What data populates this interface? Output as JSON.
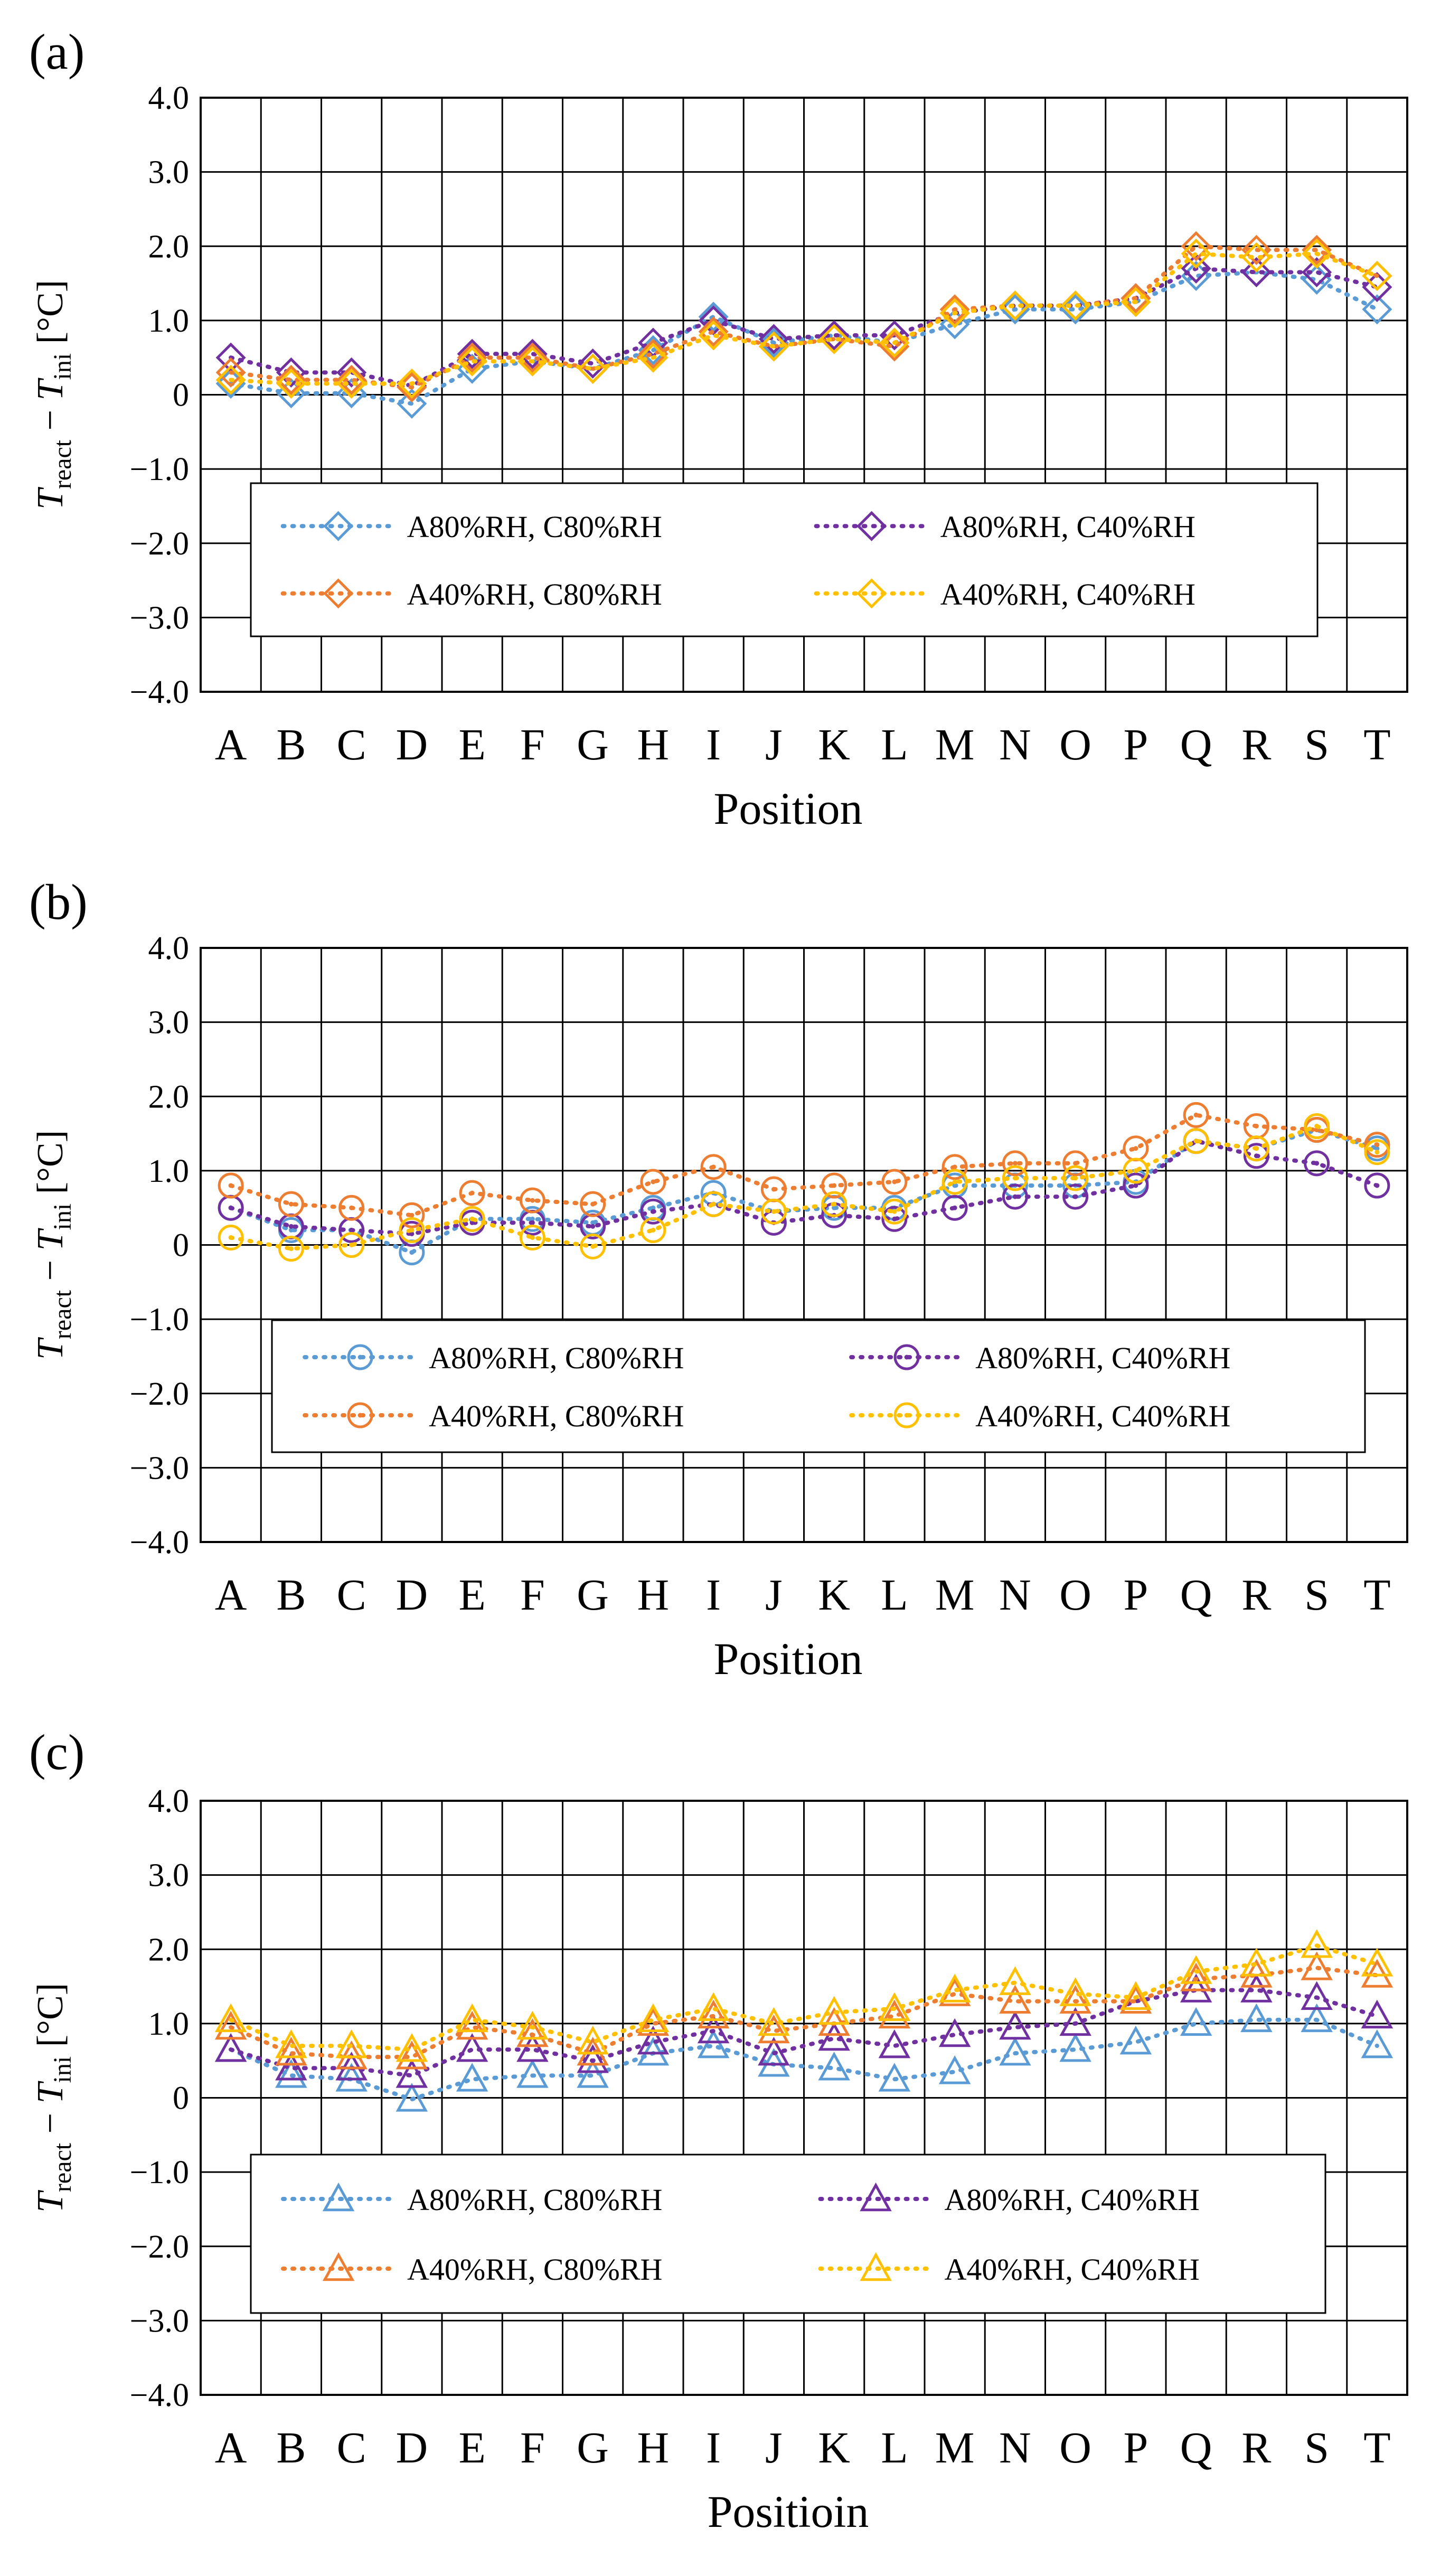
{
  "figure": {
    "panel_labels": [
      "(a)",
      "(b)",
      "(c)"
    ]
  },
  "colors": {
    "A80%RH, C80%RH": "#5B9BD5",
    "A80%RH, C40%RH": "#7030A0",
    "A40%RH, C80%RH": "#ED7D31",
    "A40%RH, C40%RH": "#FFC000"
  },
  "chart_data": [
    {
      "type": "line",
      "panel": "(a)",
      "marker": "diamond",
      "categories": [
        "A",
        "B",
        "C",
        "D",
        "E",
        "F",
        "G",
        "H",
        "I",
        "J",
        "K",
        "L",
        "M",
        "N",
        "O",
        "P",
        "Q",
        "R",
        "S",
        "T"
      ],
      "xlabel": "Position",
      "ylabel_main": "T",
      "ylabel_sub1": "react",
      "ylabel_dash": " − ",
      "ylabel_main2": "T",
      "ylabel_sub2": "ini",
      "ylabel_unit": " [°C]",
      "yticks": [
        "4.0",
        "3.0",
        "2.0",
        "1.0",
        "0",
        "−1.0",
        "−2.0",
        "−3.0",
        "−4.0"
      ],
      "ylim": [
        -4,
        4
      ],
      "grid": true,
      "legend_position": "lower-center",
      "series": [
        {
          "name": "A80%RH, C80%RH",
          "values": [
            0.15,
            0.02,
            0.02,
            -0.12,
            0.35,
            0.45,
            0.35,
            0.6,
            1.05,
            0.7,
            0.8,
            0.7,
            0.95,
            1.15,
            1.15,
            1.25,
            1.6,
            1.65,
            1.55,
            1.15
          ]
        },
        {
          "name": "A80%RH, C40%RH",
          "values": [
            0.5,
            0.3,
            0.3,
            0.12,
            0.55,
            0.55,
            0.42,
            0.7,
            1.0,
            0.75,
            0.8,
            0.8,
            1.1,
            1.2,
            1.2,
            1.3,
            1.7,
            1.65,
            1.65,
            1.45
          ]
        },
        {
          "name": "A40%RH, C80%RH",
          "values": [
            0.3,
            0.2,
            0.2,
            0.1,
            0.5,
            0.5,
            0.35,
            0.55,
            0.85,
            0.65,
            0.75,
            0.65,
            1.15,
            1.2,
            1.2,
            1.3,
            2.0,
            1.95,
            1.95,
            1.6
          ]
        },
        {
          "name": "A40%RH, C40%RH",
          "values": [
            0.2,
            0.15,
            0.15,
            0.15,
            0.45,
            0.45,
            0.35,
            0.5,
            0.8,
            0.65,
            0.75,
            0.7,
            1.1,
            1.2,
            1.2,
            1.25,
            1.9,
            1.85,
            1.9,
            1.6
          ]
        }
      ]
    },
    {
      "type": "line",
      "panel": "(b)",
      "marker": "circle",
      "categories": [
        "A",
        "B",
        "C",
        "D",
        "E",
        "F",
        "G",
        "H",
        "I",
        "J",
        "K",
        "L",
        "M",
        "N",
        "O",
        "P",
        "Q",
        "R",
        "S",
        "T"
      ],
      "xlabel": "Position",
      "ylabel_main": "T",
      "ylabel_sub1": "react",
      "ylabel_dash": " − ",
      "ylabel_main2": "T",
      "ylabel_sub2": "ini",
      "ylabel_unit": " [°C]",
      "yticks": [
        "4.0",
        "3.0",
        "2.0",
        "1.0",
        "0",
        "−1.0",
        "−2.0",
        "−3.0",
        "−4.0"
      ],
      "ylim": [
        -4,
        4
      ],
      "grid": true,
      "legend_position": "lower-center",
      "series": [
        {
          "name": "A80%RH, C80%RH",
          "values": [
            0.5,
            0.2,
            0.2,
            -0.1,
            0.35,
            0.35,
            0.3,
            0.5,
            0.7,
            0.45,
            0.5,
            0.5,
            0.8,
            0.8,
            0.8,
            0.85,
            1.4,
            1.3,
            1.55,
            1.3
          ]
        },
        {
          "name": "A80%RH, C40%RH",
          "values": [
            0.5,
            0.25,
            0.2,
            0.15,
            0.3,
            0.3,
            0.25,
            0.45,
            0.55,
            0.3,
            0.4,
            0.35,
            0.5,
            0.65,
            0.65,
            0.8,
            1.4,
            1.2,
            1.1,
            0.8
          ]
        },
        {
          "name": "A40%RH, C80%RH",
          "values": [
            0.8,
            0.55,
            0.5,
            0.4,
            0.7,
            0.6,
            0.55,
            0.85,
            1.05,
            0.75,
            0.8,
            0.85,
            1.05,
            1.1,
            1.1,
            1.3,
            1.75,
            1.6,
            1.55,
            1.35
          ]
        },
        {
          "name": "A40%RH, C40%RH",
          "values": [
            0.1,
            -0.05,
            0.0,
            0.2,
            0.35,
            0.1,
            -0.02,
            0.2,
            0.55,
            0.45,
            0.55,
            0.45,
            0.85,
            0.9,
            0.9,
            1.0,
            1.4,
            1.3,
            1.6,
            1.25
          ]
        }
      ]
    },
    {
      "type": "line",
      "panel": "(c)",
      "marker": "triangle",
      "categories": [
        "A",
        "B",
        "C",
        "D",
        "E",
        "F",
        "G",
        "H",
        "I",
        "J",
        "K",
        "L",
        "M",
        "N",
        "O",
        "P",
        "Q",
        "R",
        "S",
        "T"
      ],
      "xlabel": "Positioin",
      "ylabel_main": "T",
      "ylabel_sub1": "react",
      "ylabel_dash": " − ",
      "ylabel_main2": "T",
      "ylabel_sub2": "ini",
      "ylabel_unit": " [°C]",
      "yticks": [
        "4.0",
        "3.0",
        "2.0",
        "1.0",
        "0",
        "−1.0",
        "−2.0",
        "−3.0",
        "−4.0"
      ],
      "ylim": [
        -4,
        4
      ],
      "grid": true,
      "legend_position": "lower-center",
      "series": [
        {
          "name": "A80%RH, C80%RH",
          "values": [
            0.65,
            0.3,
            0.25,
            -0.02,
            0.25,
            0.3,
            0.3,
            0.6,
            0.7,
            0.45,
            0.4,
            0.25,
            0.35,
            0.6,
            0.65,
            0.75,
            1.0,
            1.05,
            1.05,
            0.7
          ]
        },
        {
          "name": "A80%RH, C40%RH",
          "values": [
            0.65,
            0.4,
            0.4,
            0.3,
            0.65,
            0.65,
            0.5,
            0.75,
            0.9,
            0.6,
            0.8,
            0.7,
            0.85,
            0.95,
            1.0,
            1.3,
            1.45,
            1.45,
            1.35,
            1.1
          ]
        },
        {
          "name": "A40%RH, C80%RH",
          "values": [
            0.95,
            0.6,
            0.55,
            0.55,
            0.95,
            0.85,
            0.6,
            1.0,
            1.1,
            0.9,
            1.0,
            1.1,
            1.4,
            1.3,
            1.3,
            1.3,
            1.6,
            1.65,
            1.75,
            1.65
          ]
        },
        {
          "name": "A40%RH, C40%RH",
          "values": [
            1.05,
            0.7,
            0.7,
            0.65,
            1.05,
            0.95,
            0.75,
            1.05,
            1.2,
            1.0,
            1.15,
            1.2,
            1.45,
            1.55,
            1.4,
            1.35,
            1.7,
            1.8,
            2.05,
            1.8
          ]
        }
      ]
    }
  ]
}
